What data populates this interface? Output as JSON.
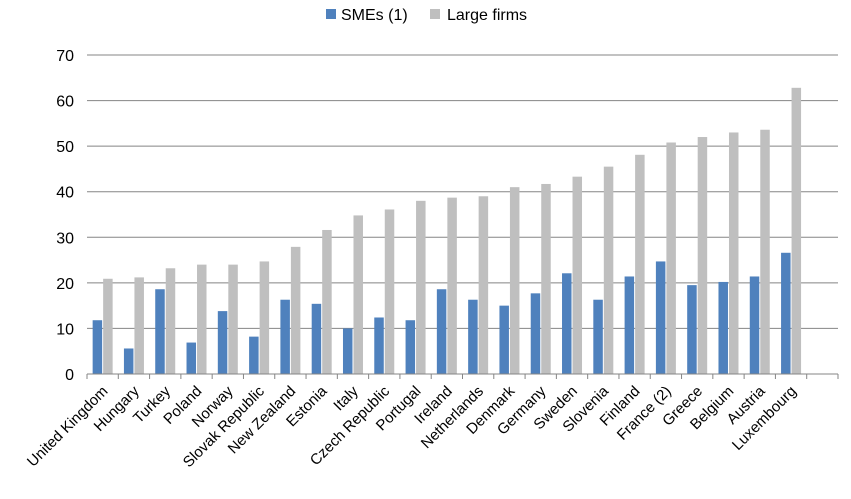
{
  "chart_data": {
    "type": "bar",
    "title": "",
    "xlabel": "",
    "ylabel": "",
    "ylim": [
      0,
      70
    ],
    "yticks": [
      0,
      10,
      20,
      30,
      40,
      50,
      60,
      70
    ],
    "grid": true,
    "legend_position": "top",
    "categories": [
      "United Kingdom",
      "Hungary",
      "Turkey",
      "Poland",
      "Norway",
      "Slovak Republic",
      "New Zealand",
      "Estonia",
      "Italy",
      "Czech Republic",
      "Portugal",
      "Ireland",
      "Netherlands",
      "Denmark",
      "Germany",
      "Sweden",
      "Slovenia",
      "Finland",
      "France (2)",
      "Greece",
      "Belgium",
      "Austria",
      "Luxembourg"
    ],
    "series": [
      {
        "name": "SMEs (1)",
        "color": "#4f81bd",
        "values": [
          11.8,
          5.6,
          18.6,
          6.9,
          13.8,
          8.2,
          16.3,
          15.4,
          10.0,
          12.4,
          11.8,
          18.6,
          16.3,
          15.0,
          17.7,
          22.1,
          16.3,
          21.4,
          24.7,
          19.5,
          20.2,
          21.4,
          26.6
        ]
      },
      {
        "name": "Large firms",
        "color": "#bfbfbf",
        "values": [
          20.9,
          21.2,
          23.2,
          24.0,
          24.0,
          24.7,
          27.9,
          31.6,
          34.8,
          36.1,
          38.0,
          38.7,
          39.0,
          41.0,
          41.7,
          43.3,
          45.5,
          48.1,
          50.8,
          52.0,
          53.0,
          53.6,
          62.8
        ]
      }
    ]
  }
}
